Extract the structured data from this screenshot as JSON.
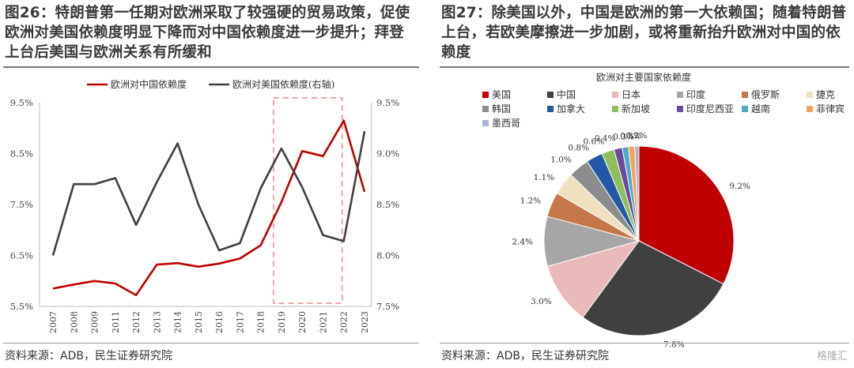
{
  "left": {
    "title": "图26：特朗普第一任期对欧洲采取了较强硬的贸易政策，促使欧洲对美国依赖度明显下降而对中国依赖度进一步提升；拜登上台后美国与欧洲关系有所缓和",
    "source": "资料来源：ADB，民生证券研究院"
  },
  "right": {
    "title": "图27：除美国以外，中国是欧洲的第一大依赖国；随着特朗普上台，若欧美摩擦进一步加剧，或将重新抬升欧洲对中国的依赖度",
    "source": "资料来源：ADB，民生证券研究院",
    "watermark": "格隆汇"
  },
  "chart_data": [
    {
      "type": "line",
      "title": "",
      "x": [
        "2007",
        "2008",
        "2009",
        "2011",
        "2012",
        "2013",
        "2014",
        "2015",
        "2016",
        "2017",
        "2018",
        "2019",
        "2020",
        "2021",
        "2022",
        "2023"
      ],
      "series": [
        {
          "name": "欧洲对中国依赖度",
          "axis": "left",
          "color": "#c00000",
          "values": [
            5.85,
            5.93,
            6.0,
            5.95,
            5.72,
            6.32,
            6.35,
            6.28,
            6.34,
            6.44,
            6.7,
            7.55,
            8.55,
            8.45,
            9.15,
            7.75
          ]
        },
        {
          "name": "欧洲对美国依赖度(右轴)",
          "axis": "right",
          "color": "#404040",
          "values": [
            8.0,
            8.7,
            8.7,
            8.76,
            8.3,
            8.72,
            9.1,
            8.5,
            8.05,
            8.12,
            8.66,
            9.05,
            8.67,
            8.2,
            8.14,
            9.22
          ]
        }
      ],
      "y_left": {
        "range": [
          5.5,
          9.5
        ],
        "ticks": [
          "9.5%",
          "8.5%",
          "7.5%",
          "6.5%",
          "5.5%"
        ]
      },
      "y_right": {
        "range": [
          7.5,
          9.5
        ],
        "ticks": [
          "9.5%",
          "9.0%",
          "8.5%",
          "8.0%",
          "7.5%"
        ]
      },
      "highlight": {
        "from": "2019",
        "to": "2022",
        "style": "dashed",
        "color": "#f2a5a5"
      },
      "legend_position": "top"
    },
    {
      "type": "pie",
      "title": "欧洲对主要国家依赖度",
      "legend_position": "top",
      "labels": [
        "美国",
        "中国",
        "日本",
        "印度",
        "俄罗斯",
        "捷克",
        "韩国",
        "加拿大",
        "新加坡",
        "印度尼西亚",
        "越南",
        "菲律宾",
        "墨西哥"
      ],
      "colors": [
        "#c00000",
        "#404040",
        "#eab9b9",
        "#a6a6a6",
        "#c5774a",
        "#f0e0c0",
        "#8c8c8c",
        "#2457a4",
        "#8fbf5a",
        "#6a4a99",
        "#4bacc6",
        "#f7a25a",
        "#a6b4d8"
      ],
      "values": [
        9.2,
        7.8,
        3.0,
        2.4,
        1.2,
        1.1,
        1.0,
        0.8,
        0.6,
        0.4,
        0.3,
        0.3,
        0.2
      ],
      "value_labels": [
        "9.2%",
        "7.8%",
        "3.0%",
        "2.4%",
        "1.2%",
        "1.1%",
        "1.0%",
        "0.8%",
        "0.6%",
        "0.4%",
        "0.3%",
        "0.3%",
        "0.2%"
      ]
    }
  ]
}
